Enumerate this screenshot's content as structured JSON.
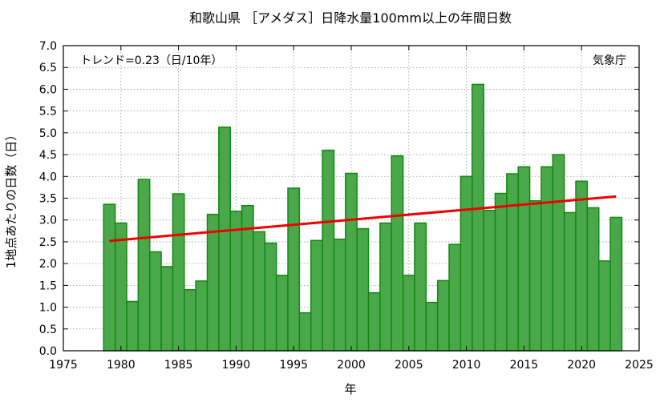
{
  "chart_data": {
    "type": "bar",
    "title": "和歌山県 ［アメダス］日降水量100mm以上の年間日数",
    "xlabel": "年",
    "ylabel": "1地点あたりの日数（日）",
    "xlim": [
      1975,
      2025
    ],
    "ylim": [
      0,
      7
    ],
    "x_ticks": [
      1975,
      1980,
      1985,
      1990,
      1995,
      2000,
      2005,
      2010,
      2015,
      2020,
      2025
    ],
    "y_ticks": [
      "0.0",
      "0.5",
      "1.0",
      "1.5",
      "2.0",
      "2.5",
      "3.0",
      "3.5",
      "4.0",
      "4.5",
      "5.0",
      "5.5",
      "6.0",
      "6.5",
      "7.0"
    ],
    "grid": true,
    "colors": {
      "bar_fill": "#4aa84a",
      "bar_edge": "#118811",
      "trend": "#ee0000"
    },
    "x": [
      1979,
      1980,
      1981,
      1982,
      1983,
      1984,
      1985,
      1986,
      1987,
      1988,
      1989,
      1990,
      1991,
      1992,
      1993,
      1994,
      1995,
      1996,
      1997,
      1998,
      1999,
      2000,
      2001,
      2002,
      2003,
      2004,
      2005,
      2006,
      2007,
      2008,
      2009,
      2010,
      2011,
      2012,
      2013,
      2014,
      2015,
      2016,
      2017,
      2018,
      2019,
      2020,
      2021,
      2022,
      2023
    ],
    "values": [
      3.36,
      2.93,
      1.13,
      3.93,
      2.27,
      1.93,
      3.6,
      1.4,
      1.6,
      3.13,
      5.13,
      3.2,
      3.33,
      2.73,
      2.47,
      1.73,
      3.73,
      0.87,
      2.53,
      4.6,
      2.56,
      4.07,
      2.8,
      1.33,
      2.93,
      4.47,
      1.73,
      2.93,
      1.11,
      1.61,
      2.44,
      4.0,
      6.11,
      3.22,
      3.61,
      4.06,
      4.22,
      3.44,
      4.22,
      4.5,
      3.17,
      3.89,
      3.28,
      2.06,
      3.06
    ],
    "trend": {
      "label": "トレンド=0.23（日/10年）",
      "x": [
        1979,
        2023
      ],
      "y": [
        2.52,
        3.54
      ]
    },
    "annotation": "気象庁"
  }
}
